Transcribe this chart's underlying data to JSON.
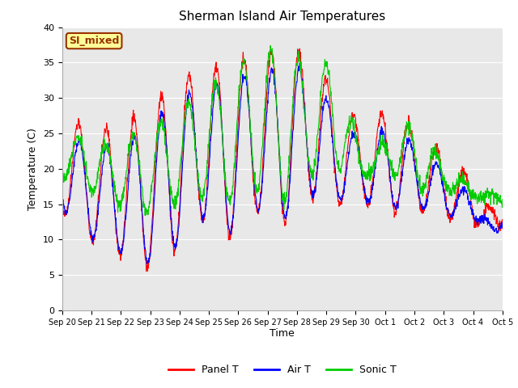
{
  "title": "Sherman Island Air Temperatures",
  "xlabel": "Time",
  "ylabel": "Temperature (C)",
  "ylim": [
    0,
    40
  ],
  "yticks": [
    0,
    5,
    10,
    15,
    20,
    25,
    30,
    35,
    40
  ],
  "x_tick_labels": [
    "Sep 20",
    "Sep 21",
    "Sep 22",
    "Sep 23",
    "Sep 24",
    "Sep 25",
    "Sep 26",
    "Sep 27",
    "Sep 28",
    "Sep 29",
    "Sep 30",
    "Oct 1",
    "Oct 2",
    "Oct 3",
    "Oct 4",
    "Oct 5"
  ],
  "panel_color": "#ff0000",
  "air_color": "#0000ff",
  "sonic_color": "#00cc00",
  "bg_color": "#e8e8e8",
  "fig_color": "#ffffff",
  "legend_labels": [
    "Panel T",
    "Air T",
    "Sonic T"
  ],
  "annotation_text": "SI_mixed",
  "annotation_bg": "#ffff99",
  "annotation_border": "#993300"
}
